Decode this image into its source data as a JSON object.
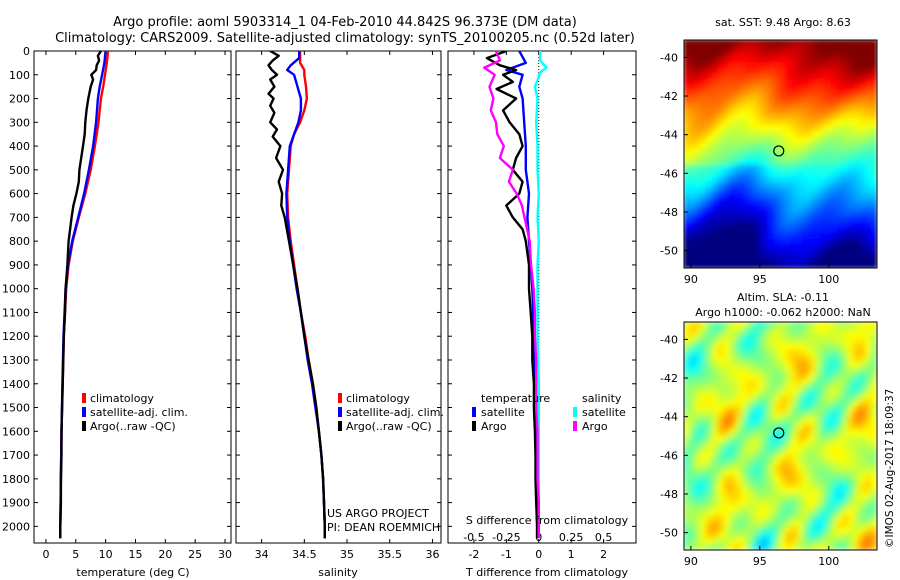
{
  "header": {
    "line1": "Argo profile: aoml 5903314_1 04-Feb-2010 44.842S 96.373E (DM data)",
    "line2": "Climatology: CARS2009. Satellite-adjusted climatology: synTS_20100205.nc (0.52d later)"
  },
  "colors": {
    "climatology": "#ff0000",
    "satellite": "#0000ff",
    "argo": "#000000",
    "salinity_satellite": "#00ffff",
    "salinity_argo": "#ff00ff"
  },
  "chart_data": [
    {
      "id": "temperature",
      "type": "line",
      "xlabel": "temperature (deg C)",
      "xlim": [
        -2,
        31
      ],
      "xticks": [
        0,
        5,
        10,
        15,
        20,
        25,
        30
      ],
      "ylim": [
        2070,
        0
      ],
      "yticks": [
        0,
        100,
        200,
        300,
        400,
        500,
        600,
        700,
        800,
        900,
        1000,
        1100,
        1200,
        1300,
        1400,
        1500,
        1600,
        1700,
        1800,
        1900,
        2000
      ],
      "legend": [
        "climatology",
        "satellite-adj. clim.",
        "Argo(..raw -QC)"
      ],
      "series": [
        {
          "name": "climatology",
          "color": "#ff0000",
          "depth": [
            0,
            50,
            100,
            150,
            200,
            300,
            400,
            500,
            600,
            700,
            800,
            900,
            1000,
            1200,
            1400,
            1600,
            1800,
            2000,
            2050
          ],
          "values": [
            10.4,
            10.2,
            9.9,
            9.6,
            9.2,
            8.8,
            8.2,
            7.5,
            6.6,
            5.5,
            4.5,
            3.8,
            3.4,
            3.0,
            2.8,
            2.6,
            2.5,
            2.4,
            2.4
          ]
        },
        {
          "name": "satellite-adj. clim.",
          "color": "#0000ff",
          "depth": [
            0,
            50,
            100,
            150,
            200,
            300,
            400,
            500,
            600,
            700,
            800,
            900,
            1000,
            1200,
            1400,
            1600,
            1800,
            2000,
            2050
          ],
          "values": [
            10.0,
            9.8,
            9.4,
            9.0,
            8.7,
            8.4,
            7.9,
            7.2,
            6.4,
            5.4,
            4.4,
            3.7,
            3.3,
            2.95,
            2.75,
            2.6,
            2.5,
            2.4,
            2.4
          ]
        },
        {
          "name": "Argo(..raw -QC)",
          "color": "#000000",
          "depth": [
            0,
            20,
            40,
            60,
            80,
            100,
            120,
            150,
            200,
            250,
            300,
            350,
            400,
            450,
            500,
            550,
            600,
            650,
            700,
            800,
            900,
            1000,
            1100,
            1200,
            1300,
            1400,
            1500,
            1600,
            1700,
            1800,
            1900,
            2000,
            2050
          ],
          "values": [
            9.2,
            8.7,
            8.9,
            8.5,
            8.4,
            7.6,
            7.9,
            7.5,
            7.1,
            6.8,
            6.6,
            6.5,
            6.2,
            5.9,
            5.6,
            5.5,
            5.1,
            4.6,
            4.3,
            3.8,
            3.6,
            3.3,
            3.2,
            3.0,
            2.9,
            2.8,
            2.7,
            2.6,
            2.6,
            2.5,
            2.5,
            2.4,
            2.4
          ]
        }
      ]
    },
    {
      "id": "salinity",
      "type": "line",
      "xlabel": "salinity",
      "xlim": [
        33.7,
        36.1
      ],
      "xticks": [
        34,
        34.5,
        35,
        35.5,
        36
      ],
      "ylim": [
        2070,
        0
      ],
      "legend": [
        "climatology",
        "satellite-adj. clim.",
        "Argo(..raw -QC)"
      ],
      "annotations": [
        "US ARGO PROJECT",
        "PI: DEAN ROEMMICH"
      ],
      "series": [
        {
          "name": "climatology",
          "color": "#ff0000",
          "depth": [
            0,
            50,
            80,
            100,
            150,
            200,
            250,
            300,
            350,
            400,
            500,
            600,
            700,
            800,
            900,
            1000,
            1100,
            1200,
            1300,
            1400,
            1500,
            1600,
            1700,
            1800,
            1900,
            2000,
            2050
          ],
          "values": [
            34.45,
            34.45,
            34.5,
            34.5,
            34.52,
            34.53,
            34.5,
            34.45,
            34.38,
            34.34,
            34.32,
            34.3,
            34.31,
            34.34,
            34.38,
            34.42,
            34.46,
            34.51,
            34.55,
            34.6,
            34.64,
            34.67,
            34.7,
            34.72,
            34.73,
            34.74,
            34.74
          ]
        },
        {
          "name": "satellite-adj. clim.",
          "color": "#0000ff",
          "depth": [
            0,
            30,
            60,
            80,
            100,
            150,
            200,
            250,
            300,
            350,
            400,
            500,
            600,
            700,
            800,
            900,
            1000,
            1100,
            1200,
            1300,
            1400,
            1500,
            1600,
            1700,
            1800,
            1900,
            2000,
            2050
          ],
          "values": [
            34.44,
            34.44,
            34.34,
            34.3,
            34.38,
            34.42,
            34.46,
            34.46,
            34.43,
            34.38,
            34.33,
            34.31,
            34.29,
            34.3,
            34.33,
            34.37,
            34.41,
            34.46,
            34.5,
            34.54,
            34.59,
            34.63,
            34.67,
            34.7,
            34.72,
            34.73,
            34.74,
            34.74
          ]
        },
        {
          "name": "Argo(..raw -QC)",
          "color": "#000000",
          "depth": [
            0,
            20,
            40,
            60,
            80,
            100,
            120,
            150,
            180,
            200,
            230,
            260,
            300,
            330,
            360,
            400,
            450,
            500,
            550,
            600,
            650,
            700,
            800,
            900,
            1000,
            1100,
            1200,
            1300,
            1400,
            1500,
            1600,
            1700,
            1800,
            1900,
            2000,
            2050
          ],
          "values": [
            34.1,
            34.2,
            34.13,
            34.08,
            34.12,
            34.18,
            34.1,
            34.15,
            34.08,
            34.14,
            34.1,
            34.15,
            34.1,
            34.18,
            34.13,
            34.22,
            34.17,
            34.25,
            34.2,
            34.24,
            34.23,
            34.27,
            34.32,
            34.37,
            34.42,
            34.46,
            34.5,
            34.55,
            34.6,
            34.64,
            34.67,
            34.7,
            34.72,
            34.73,
            34.74,
            34.74
          ]
        }
      ]
    },
    {
      "id": "difference",
      "type": "line",
      "xlabel": "T difference from climatology",
      "xlabel_top": "S difference from climatology",
      "xlim": [
        -2.8,
        3.0
      ],
      "xticks": [
        -2,
        -1,
        0,
        1,
        2
      ],
      "top_ticks": [
        -0.5,
        -0.25,
        0,
        0.25,
        0.5
      ],
      "top_tick_labels": [
        "-0.5",
        "-0.25",
        "0",
        "0.25",
        "0.5"
      ],
      "ylim": [
        2070,
        0
      ],
      "legend_titles": [
        "temperature",
        "salinity"
      ],
      "legend": [
        "satellite",
        "Argo",
        "satellite",
        "Argo"
      ],
      "series": [
        {
          "name": "temperature satellite",
          "color": "#0000ff",
          "depth": [
            0,
            50,
            80,
            100,
            150,
            200,
            300,
            400,
            500,
            600,
            700,
            800,
            900,
            1000,
            1200,
            1400,
            1600,
            1800,
            2000,
            2050
          ],
          "values": [
            -0.6,
            -0.4,
            -1.0,
            -0.5,
            -0.6,
            -0.5,
            -0.45,
            -0.4,
            -0.4,
            -0.3,
            -0.35,
            -0.3,
            -0.25,
            -0.2,
            -0.15,
            -0.1,
            -0.05,
            -0.05,
            -0.05,
            -0.05
          ]
        },
        {
          "name": "temperature Argo",
          "color": "#000000",
          "depth": [
            0,
            30,
            60,
            80,
            100,
            130,
            160,
            200,
            250,
            300,
            350,
            400,
            450,
            500,
            550,
            600,
            650,
            700,
            750,
            800,
            900,
            1000,
            1100,
            1200,
            1300,
            1400,
            1500,
            1600,
            1700,
            1800,
            1900,
            2000,
            2050
          ],
          "values": [
            -1.0,
            -1.6,
            -1.2,
            -0.7,
            -1.1,
            -0.8,
            -1.3,
            -0.7,
            -1.1,
            -0.9,
            -0.6,
            -0.5,
            -0.7,
            -0.8,
            -0.5,
            -0.6,
            -1.0,
            -0.8,
            -0.5,
            -0.4,
            -0.3,
            -0.3,
            -0.25,
            -0.2,
            -0.2,
            -0.15,
            -0.15,
            -0.12,
            -0.1,
            -0.1,
            -0.08,
            -0.05,
            -0.05
          ]
        },
        {
          "name": "salinity satellite",
          "color": "#00ffff",
          "depth": [
            0,
            40,
            70,
            90,
            110,
            150,
            200,
            300,
            400,
            500,
            600,
            700,
            800,
            900,
            1000,
            1200,
            1400,
            1600,
            1800,
            2000,
            2050
          ],
          "values": [
            0.01,
            0.01,
            0.06,
            0.01,
            0,
            -0.03,
            -0.01,
            -0.02,
            -0.01,
            -0.01,
            0,
            -0.01,
            0,
            -0.01,
            -0.01,
            -0.01,
            0,
            0,
            0,
            0,
            0
          ]
        },
        {
          "name": "salinity Argo",
          "color": "#ff00ff",
          "depth": [
            0,
            40,
            70,
            100,
            150,
            200,
            250,
            300,
            350,
            400,
            450,
            500,
            550,
            600,
            650,
            700,
            800,
            900,
            1000,
            1100,
            1200,
            1300,
            1400,
            1500,
            1600,
            1700,
            1800,
            1900,
            2000,
            2050
          ],
          "values": [
            -0.33,
            -0.3,
            -0.42,
            -0.34,
            -0.38,
            -0.35,
            -0.37,
            -0.33,
            -0.32,
            -0.27,
            -0.3,
            -0.2,
            -0.23,
            -0.17,
            -0.13,
            -0.11,
            -0.07,
            -0.06,
            -0.04,
            -0.03,
            -0.03,
            -0.02,
            -0.02,
            -0.02,
            -0.01,
            -0.01,
            -0.01,
            0,
            0,
            0
          ]
        }
      ]
    },
    {
      "id": "sst_map",
      "type": "heatmap",
      "title": "sat. SST: 9.48 Argo: 8.63",
      "xticks": [
        90,
        95,
        100
      ],
      "yticks": [
        -40,
        -42,
        -44,
        -46,
        -48,
        -50
      ],
      "xlim": [
        89.5,
        103.5
      ],
      "ylim": [
        -50.9,
        -39.1
      ],
      "marker": {
        "lon": 96.373,
        "lat": -44.842
      }
    },
    {
      "id": "sla_map",
      "type": "heatmap",
      "title_lines": [
        "Altim. SLA: -0.11",
        "Argo h1000: -0.062 h2000: NaN"
      ],
      "xticks": [
        90,
        95,
        100
      ],
      "yticks": [
        -40,
        -42,
        -44,
        -46,
        -48,
        -50
      ],
      "xlim": [
        89.5,
        103.5
      ],
      "ylim": [
        -50.9,
        -39.1
      ],
      "marker": {
        "lon": 96.373,
        "lat": -44.842
      }
    }
  ],
  "credit": "©IMOS 02-Aug-2017 18:09:37"
}
